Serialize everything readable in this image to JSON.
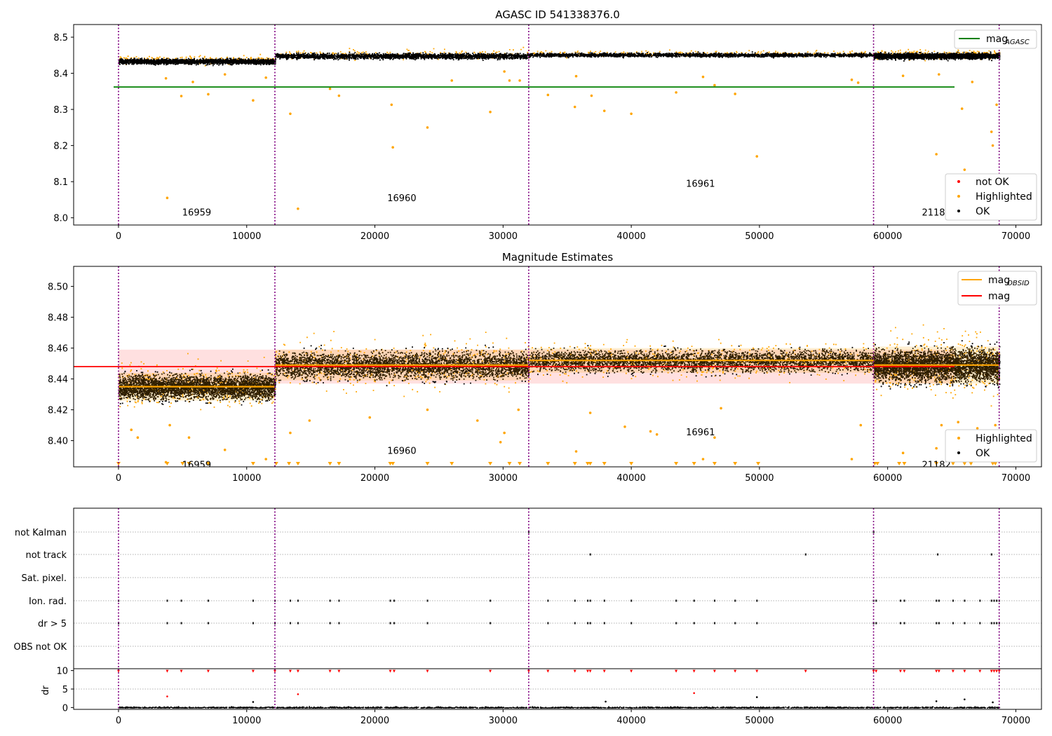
{
  "chart_data": [
    {
      "type": "scatter",
      "title": "AGASC ID 541338376.0",
      "xlim": [
        -3500,
        72000
      ],
      "ylim": [
        7.98,
        8.535
      ],
      "x_ticks": [
        0,
        10000,
        20000,
        30000,
        40000,
        50000,
        60000,
        70000
      ],
      "y_ticks": [
        8.0,
        8.1,
        8.2,
        8.3,
        8.4,
        8.5
      ],
      "y_tick_labels": [
        "8.0",
        "8.1",
        "8.2",
        "8.3",
        "8.4",
        "8.5"
      ],
      "obs_boundaries": [
        0,
        12200,
        32000,
        58900,
        68700
      ],
      "obsid_labels": [
        {
          "text": "16959",
          "x": 6100,
          "y": 8.0
        },
        {
          "text": "16960",
          "x": 22100,
          "y": 8.04
        },
        {
          "text": "16961",
          "x": 45400,
          "y": 8.08
        },
        {
          "text": "21182",
          "x": 63800,
          "y": 8.0
        }
      ],
      "mag_agasc": 8.362,
      "mag_agasc_xrange": [
        -3500,
        72000
      ],
      "segments": [
        {
          "x0": 0,
          "x1": 12200,
          "center": 8.434,
          "half": 0.018
        },
        {
          "x0": 12200,
          "x1": 32000,
          "center": 8.449,
          "half": 0.02
        },
        {
          "x0": 32000,
          "x1": 58900,
          "center": 8.452,
          "half": 0.014
        },
        {
          "x0": 58900,
          "x1": 68700,
          "center": 8.449,
          "half": 0.022
        }
      ],
      "outliers": [
        {
          "x": 3800,
          "y": 8.055
        },
        {
          "x": 14000,
          "y": 8.025
        },
        {
          "x": 21400,
          "y": 8.195
        },
        {
          "x": 24100,
          "y": 8.25
        },
        {
          "x": 21300,
          "y": 8.313
        },
        {
          "x": 29000,
          "y": 8.293
        },
        {
          "x": 13400,
          "y": 8.288
        },
        {
          "x": 4900,
          "y": 8.337
        },
        {
          "x": 10500,
          "y": 8.325
        },
        {
          "x": 7000,
          "y": 8.342
        },
        {
          "x": 16500,
          "y": 8.357
        },
        {
          "x": 17200,
          "y": 8.338
        },
        {
          "x": 33500,
          "y": 8.34
        },
        {
          "x": 35600,
          "y": 8.307
        },
        {
          "x": 36900,
          "y": 8.338
        },
        {
          "x": 37900,
          "y": 8.296
        },
        {
          "x": 40000,
          "y": 8.288
        },
        {
          "x": 43500,
          "y": 8.347
        },
        {
          "x": 48100,
          "y": 8.343
        },
        {
          "x": 49800,
          "y": 8.17
        },
        {
          "x": 63800,
          "y": 8.176
        },
        {
          "x": 65800,
          "y": 8.302
        },
        {
          "x": 66000,
          "y": 8.133
        },
        {
          "x": 68100,
          "y": 8.238
        },
        {
          "x": 68200,
          "y": 8.2
        },
        {
          "x": 68500,
          "y": 8.313
        },
        {
          "x": 5800,
          "y": 8.376
        },
        {
          "x": 3700,
          "y": 8.386
        },
        {
          "x": 26000,
          "y": 8.38
        },
        {
          "x": 35700,
          "y": 8.392
        },
        {
          "x": 45600,
          "y": 8.39
        },
        {
          "x": 46500,
          "y": 8.367
        },
        {
          "x": 57200,
          "y": 8.382
        },
        {
          "x": 57700,
          "y": 8.374
        },
        {
          "x": 61200,
          "y": 8.393
        },
        {
          "x": 64000,
          "y": 8.397
        },
        {
          "x": 66600,
          "y": 8.376
        },
        {
          "x": 30500,
          "y": 8.38
        },
        {
          "x": 31300,
          "y": 8.38
        },
        {
          "x": 11500,
          "y": 8.388
        },
        {
          "x": 8300,
          "y": 8.397
        },
        {
          "x": 30100,
          "y": 8.405
        }
      ],
      "legend": [
        {
          "label": "mag",
          "sub": "AGASC",
          "color": "#008000",
          "kind": "line"
        }
      ],
      "legend2": [
        {
          "label": "not OK",
          "color": "#ff0000",
          "kind": "dot"
        },
        {
          "label": "Highlighted",
          "color": "#ffa500",
          "kind": "dot"
        },
        {
          "label": "OK",
          "color": "#000000",
          "kind": "dot"
        }
      ]
    },
    {
      "type": "scatter",
      "title": "Magnitude Estimates",
      "xlim": [
        -3500,
        72000
      ],
      "ylim": [
        8.383,
        8.513
      ],
      "x_ticks": [
        0,
        10000,
        20000,
        30000,
        40000,
        50000,
        60000,
        70000
      ],
      "y_ticks": [
        8.4,
        8.42,
        8.44,
        8.46,
        8.48,
        8.5
      ],
      "y_tick_labels": [
        "8.40",
        "8.42",
        "8.44",
        "8.46",
        "8.48",
        "8.50"
      ],
      "obs_boundaries": [
        0,
        12200,
        32000,
        58900,
        68700
      ],
      "obsid_labels": [
        {
          "text": "16959",
          "x": 6100,
          "y": 8.386
        },
        {
          "text": "16960",
          "x": 22100,
          "y": 8.395
        },
        {
          "text": "16961",
          "x": 45400,
          "y": 8.407
        },
        {
          "text": "21182",
          "x": 63800,
          "y": 8.386
        }
      ],
      "mag": 8.448,
      "mag_band": [
        8.437,
        8.459
      ],
      "mag_xrange": [
        -3500,
        72000
      ],
      "segments": [
        {
          "x0": 0,
          "x1": 12200,
          "center": 8.435,
          "half": 0.009,
          "mag_obsid": 8.435
        },
        {
          "x0": 12200,
          "x1": 32000,
          "center": 8.449,
          "half": 0.01,
          "mag_obsid": 8.449
        },
        {
          "x0": 32000,
          "x1": 58900,
          "center": 8.452,
          "half": 0.008,
          "mag_obsid": 8.452
        },
        {
          "x0": 58900,
          "x1": 68700,
          "center": 8.449,
          "half": 0.012,
          "mag_obsid": 8.449
        }
      ],
      "outliers": [
        {
          "x": 5500,
          "y": 8.402
        },
        {
          "x": 1000,
          "y": 8.407
        },
        {
          "x": 1500,
          "y": 8.402
        },
        {
          "x": 4000,
          "y": 8.41
        },
        {
          "x": 8300,
          "y": 8.394
        },
        {
          "x": 11500,
          "y": 8.388
        },
        {
          "x": 3700,
          "y": 8.386
        },
        {
          "x": 13400,
          "y": 8.405
        },
        {
          "x": 14900,
          "y": 8.413
        },
        {
          "x": 19600,
          "y": 8.415
        },
        {
          "x": 24100,
          "y": 8.42
        },
        {
          "x": 28000,
          "y": 8.413
        },
        {
          "x": 29800,
          "y": 8.399
        },
        {
          "x": 30100,
          "y": 8.405
        },
        {
          "x": 31200,
          "y": 8.42
        },
        {
          "x": 35700,
          "y": 8.393
        },
        {
          "x": 36800,
          "y": 8.418
        },
        {
          "x": 39500,
          "y": 8.409
        },
        {
          "x": 41500,
          "y": 8.406
        },
        {
          "x": 42000,
          "y": 8.404
        },
        {
          "x": 45600,
          "y": 8.388
        },
        {
          "x": 46500,
          "y": 8.402
        },
        {
          "x": 47000,
          "y": 8.421
        },
        {
          "x": 57200,
          "y": 8.388
        },
        {
          "x": 57900,
          "y": 8.41
        },
        {
          "x": 61200,
          "y": 8.392
        },
        {
          "x": 63800,
          "y": 8.395
        },
        {
          "x": 64200,
          "y": 8.41
        },
        {
          "x": 65500,
          "y": 8.412
        },
        {
          "x": 67000,
          "y": 8.408
        },
        {
          "x": 68400,
          "y": 8.41
        }
      ],
      "below_markers": [
        0,
        3800,
        5000,
        5500,
        7000,
        10500,
        12300,
        13300,
        14000,
        16500,
        17200,
        21200,
        21400,
        24100,
        26000,
        29000,
        30500,
        31300,
        33500,
        35600,
        36600,
        36800,
        37900,
        40000,
        43500,
        44900,
        46500,
        48100,
        49900,
        59000,
        59200,
        60900,
        61300,
        63800,
        65100,
        66000,
        66500,
        68200,
        68400
      ],
      "legend": [
        {
          "label": "mag",
          "sub": "OBSID",
          "color": "#ffa500",
          "kind": "line"
        },
        {
          "label": "mag",
          "sub": "",
          "color": "#ff0000",
          "kind": "line"
        }
      ],
      "legend2": [
        {
          "label": "Highlighted",
          "color": "#ffa500",
          "kind": "dot"
        },
        {
          "label": "OK",
          "color": "#000000",
          "kind": "dot"
        }
      ]
    },
    {
      "type": "scatter",
      "xlim": [
        -3500,
        72000
      ],
      "x_ticks": [
        0,
        10000,
        20000,
        30000,
        40000,
        50000,
        60000,
        70000
      ],
      "obs_boundaries": [
        0,
        12200,
        32000,
        58900,
        68700
      ],
      "flag_rows": [
        "not Kalman",
        "not track",
        "Sat. pixel.",
        "Ion. rad.",
        "dr > 5",
        "OBS not OK"
      ],
      "flags": {
        "not Kalman": [
          32000,
          58900
        ],
        "not track": [
          36800,
          53600,
          63900,
          68100
        ],
        "Sat. pixel.": [],
        "Ion. rad.": [
          0,
          3800,
          4900,
          7000,
          10500,
          12200,
          13400,
          14000,
          16500,
          17200,
          21200,
          21500,
          24100,
          29000,
          33500,
          35600,
          36600,
          36800,
          37900,
          40000,
          43500,
          44900,
          46500,
          48100,
          49800,
          58900,
          59100,
          61000,
          61300,
          63800,
          64000,
          65100,
          66000,
          67200,
          68100,
          68300,
          68500,
          68700
        ],
        "dr > 5": [
          0,
          3800,
          4900,
          7000,
          10500,
          12200,
          13400,
          14000,
          16500,
          17200,
          21200,
          21500,
          24100,
          29000,
          33500,
          35600,
          36600,
          36800,
          37900,
          40000,
          43500,
          44900,
          46500,
          48100,
          49800,
          58900,
          59100,
          61000,
          61300,
          63800,
          64000,
          65100,
          66000,
          67200,
          68100,
          68300,
          68500,
          68700
        ],
        "OBS not OK": []
      },
      "dr": {
        "ylabel": "dr",
        "ylim": [
          -0.5,
          10.5
        ],
        "y_ticks": [
          0,
          5,
          10
        ],
        "clipped_at": 10,
        "clipped_x": [
          0,
          3800,
          4900,
          7000,
          10500,
          12200,
          13400,
          14000,
          16500,
          17200,
          21200,
          21500,
          24100,
          29000,
          32000,
          33500,
          35600,
          36600,
          36800,
          37900,
          40000,
          43500,
          44900,
          46500,
          48100,
          49800,
          53600,
          58900,
          59100,
          61000,
          61300,
          63800,
          64000,
          65100,
          66000,
          67200,
          68100,
          68300,
          68500,
          68700
        ],
        "red_points": [
          {
            "x": 3800,
            "y": 3.0
          },
          {
            "x": 14000,
            "y": 3.6
          },
          {
            "x": 44900,
            "y": 3.9
          }
        ],
        "black_points": [
          {
            "x": 49800,
            "y": 2.8
          },
          {
            "x": 66000,
            "y": 2.2
          },
          {
            "x": 63800,
            "y": 1.7
          },
          {
            "x": 38000,
            "y": 1.6
          },
          {
            "x": 10500,
            "y": 1.5
          },
          {
            "x": 68200,
            "y": 1.4
          }
        ]
      }
    }
  ]
}
